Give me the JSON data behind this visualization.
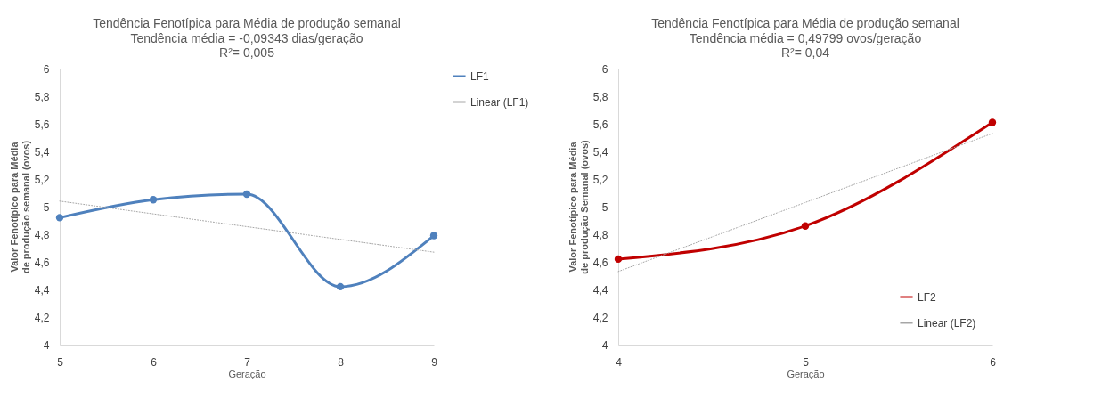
{
  "chart_data": [
    {
      "type": "line",
      "title": "Tendência Fenotípica para Média de produção semanal",
      "subtitle": "Tendência média = -0,09343 dias/geração",
      "annotations": [
        "R²= 0,005"
      ],
      "xlabel": "Geração",
      "ylabel": "Valor Fenotípico para Média de produção semanal (ovos)",
      "x": [
        5,
        6,
        7,
        8,
        9
      ],
      "xlim": [
        5,
        9
      ],
      "xticks": [
        5,
        6,
        7,
        8,
        9
      ],
      "ylim": [
        4,
        6
      ],
      "yticks": [
        4,
        {
          "value": 4.2,
          "label": "4,2"
        },
        {
          "value": 4.4,
          "label": "4,4"
        },
        {
          "value": 4.6,
          "label": "4,6"
        },
        {
          "value": 4.8,
          "label": "4,8"
        },
        5,
        {
          "value": 5.2,
          "label": "5,2"
        },
        {
          "value": 5.4,
          "label": "5,4"
        },
        {
          "value": 5.6,
          "label": "5,6"
        },
        {
          "value": 5.8,
          "label": "5,8"
        },
        6
      ],
      "grid": false,
      "legend": "right",
      "marker": "circle",
      "line_style": "solid",
      "series": [
        {
          "name": "LF1",
          "color": "#4f81bd",
          "values": [
            4.92,
            5.05,
            5.09,
            4.42,
            4.79
          ]
        },
        {
          "name": "Linear (LF1)",
          "type": "line",
          "color": "#a6a6a6",
          "x": [
            5,
            9
          ],
          "values": [
            5.04,
            4.67
          ],
          "marker": "none",
          "line_style": "dotted"
        }
      ]
    },
    {
      "type": "line",
      "title": "Tendência Fenotípica para Média de produção semanal",
      "subtitle": "Tendência média = 0,49799 ovos/geração",
      "annotations": [
        "R²= 0,04"
      ],
      "xlabel": "Geração",
      "ylabel": "Valor Fenotípico para Média de produção Semanal (ovos)",
      "x": [
        4,
        5,
        6
      ],
      "xlim": [
        4,
        6
      ],
      "xticks": [
        4,
        5,
        6
      ],
      "ylim": [
        4,
        6
      ],
      "yticks": [
        4,
        {
          "value": 4.2,
          "label": "4,2"
        },
        {
          "value": 4.4,
          "label": "4,4"
        },
        {
          "value": 4.6,
          "label": "4,6"
        },
        {
          "value": 4.8,
          "label": "4,8"
        },
        5,
        {
          "value": 5.2,
          "label": "5,2"
        },
        {
          "value": 5.4,
          "label": "5,4"
        },
        {
          "value": 5.6,
          "label": "5,6"
        },
        {
          "value": 5.8,
          "label": "5,8"
        },
        6
      ],
      "grid": false,
      "legend": "bottom right",
      "marker": "circle",
      "line_style": "solid",
      "series": [
        {
          "name": "LF2",
          "color": "#c00000",
          "values": [
            4.62,
            4.86,
            5.61
          ]
        },
        {
          "name": "Linear (LF2)",
          "type": "line",
          "color": "#a6a6a6",
          "x": [
            4,
            6
          ],
          "values": [
            4.53,
            5.53
          ],
          "marker": "none",
          "line_style": "dotted"
        }
      ]
    }
  ]
}
